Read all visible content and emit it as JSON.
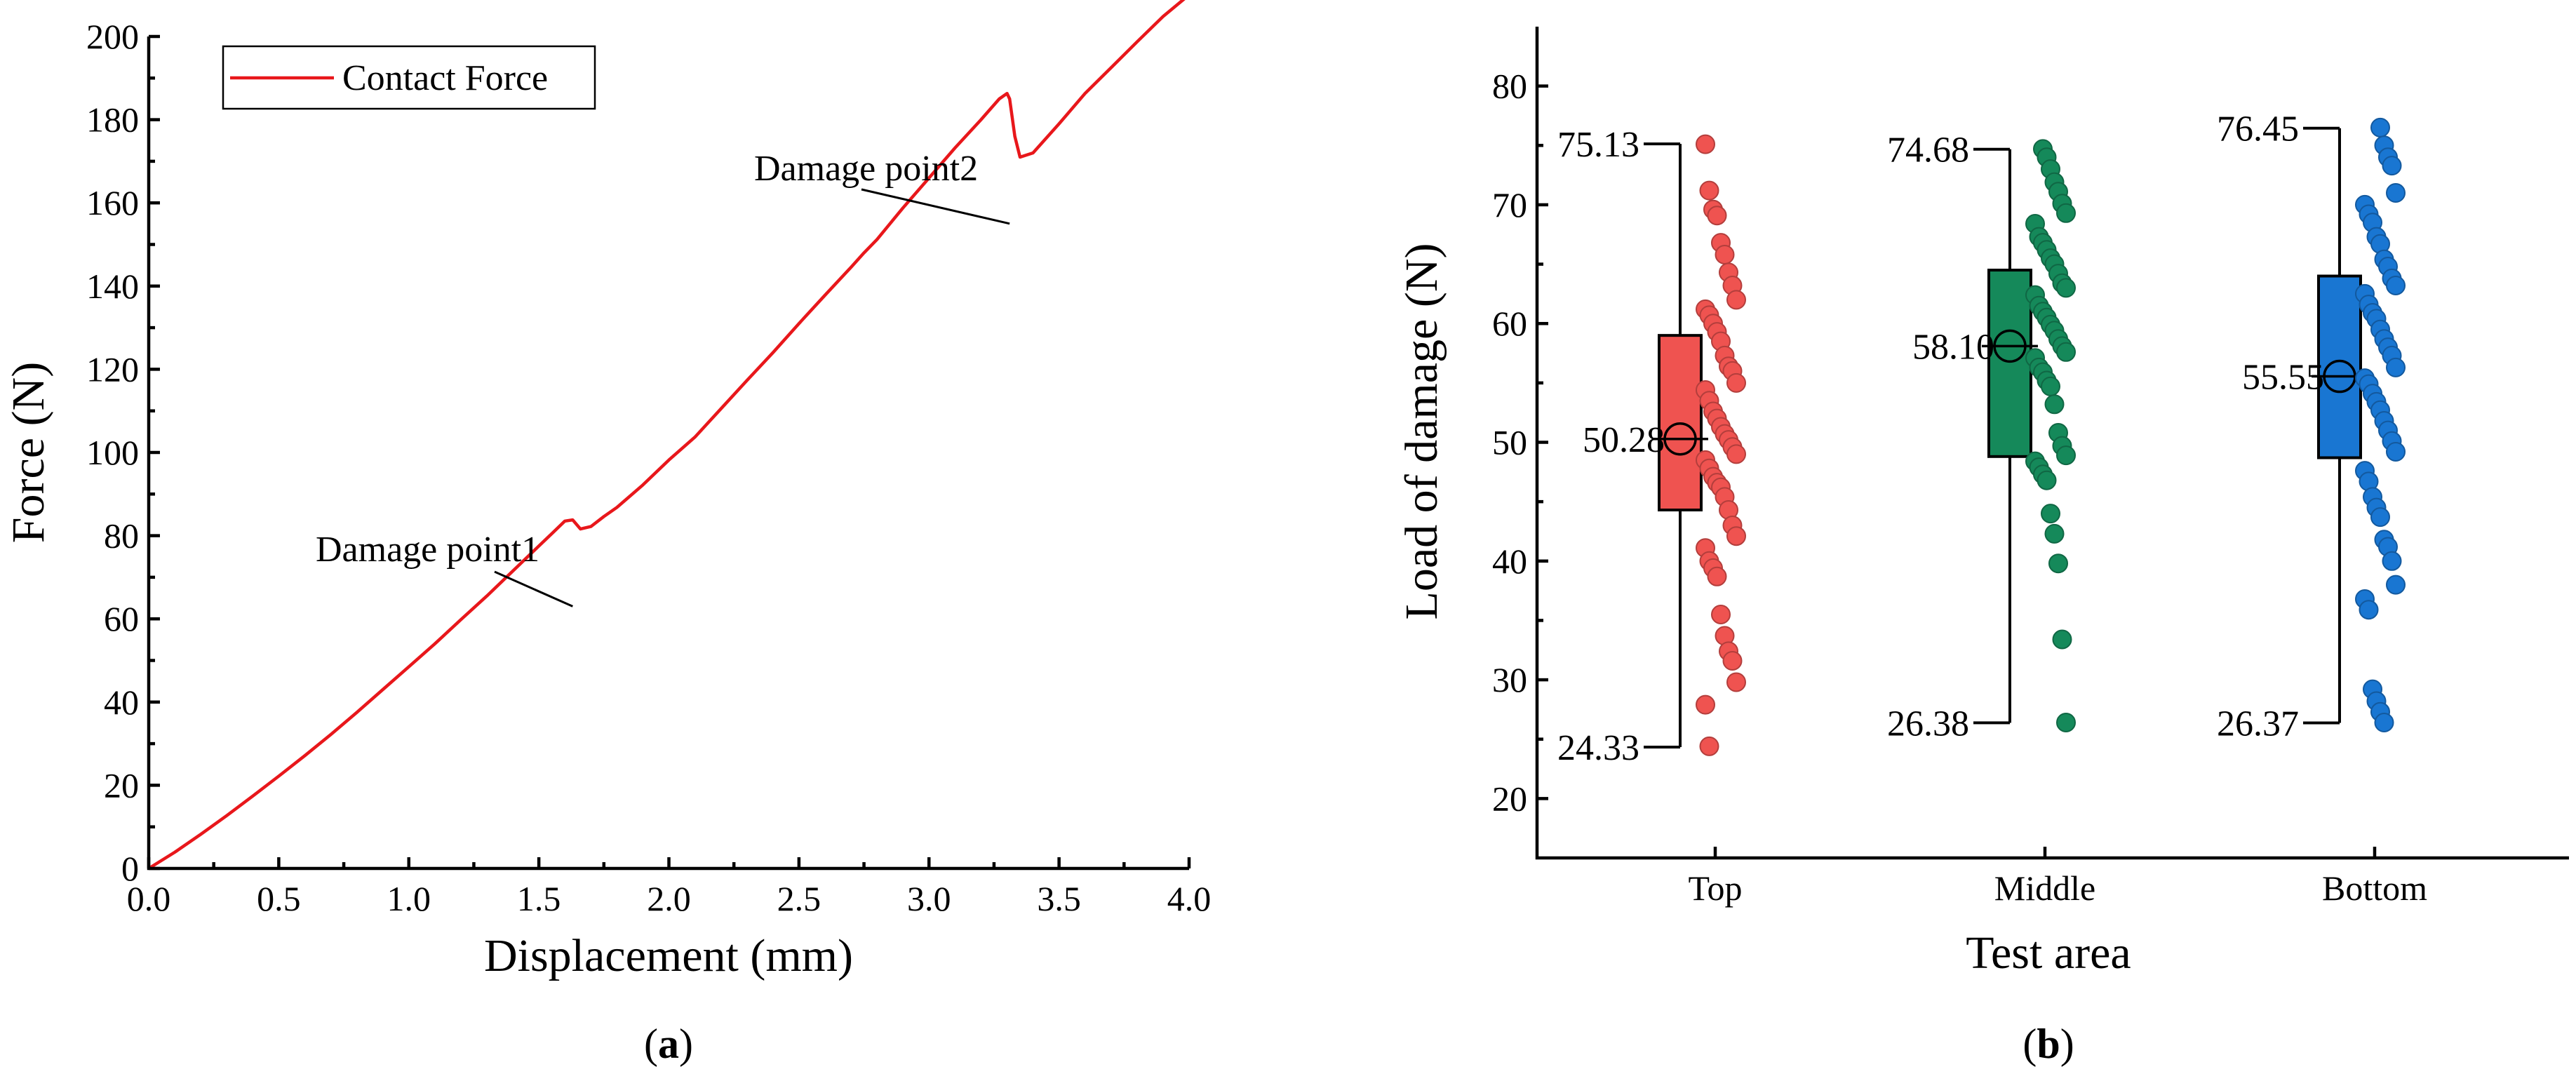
{
  "chart_data": [
    {
      "type": "line",
      "panel_label": "a",
      "title": "",
      "xlabel": "Displacement (mm)",
      "ylabel": "Force (N)",
      "xlim": [
        0,
        4.0
      ],
      "ylim": [
        0,
        200
      ],
      "xticks": [
        "0.0",
        "0.5",
        "1.0",
        "1.5",
        "2.0",
        "2.5",
        "3.0",
        "3.5",
        "4.0"
      ],
      "yticks": [
        "0",
        "20",
        "40",
        "60",
        "80",
        "100",
        "120",
        "140",
        "160",
        "180",
        "200"
      ],
      "legend": {
        "label": "Contact Force",
        "placement": "top-left"
      },
      "series": [
        {
          "name": "Contact Force",
          "color": "#e8171b",
          "x": [
            0.0,
            0.1,
            0.2,
            0.3,
            0.4,
            0.5,
            0.6,
            0.7,
            0.8,
            0.9,
            1.0,
            1.1,
            1.2,
            1.3,
            1.4,
            1.5,
            1.55,
            1.6,
            1.63,
            1.66,
            1.7,
            1.75,
            1.8,
            1.9,
            2.0,
            2.1,
            2.2,
            2.3,
            2.4,
            2.5,
            2.6,
            2.7,
            2.75,
            2.8,
            2.9,
            3.0,
            3.1,
            3.2,
            3.27,
            3.3,
            3.31,
            3.33,
            3.35,
            3.4,
            3.5,
            3.6,
            3.7,
            3.8,
            3.9,
            4.0
          ],
          "y": [
            0,
            3.9,
            8.2,
            12.7,
            17.4,
            22.2,
            27.1,
            32.2,
            37.5,
            43.0,
            48.5,
            54.0,
            59.8,
            65.5,
            71.5,
            77.5,
            80.5,
            83.5,
            83.8,
            81.6,
            82.2,
            84.6,
            86.8,
            92.2,
            98.2,
            103.7,
            110.5,
            117.3,
            124.0,
            131.0,
            137.8,
            144.5,
            148.0,
            151.2,
            158.8,
            166.0,
            173.2,
            180.0,
            185.0,
            186.3,
            185.0,
            176.0,
            171.0,
            172.0,
            179.0,
            186.3,
            192.5,
            198.7,
            204.8,
            210.0
          ]
        }
      ],
      "annotations": [
        {
          "text": "Damage point1",
          "x": 1.63,
          "y": 63
        },
        {
          "text": "Damage point2",
          "x": 3.31,
          "y": 155
        }
      ]
    },
    {
      "type": "box",
      "panel_label": "b",
      "title": "",
      "xlabel": "Test area",
      "ylabel": "Load of damage (N)",
      "ylim": [
        15,
        85
      ],
      "yticks": [
        "20",
        "30",
        "40",
        "50",
        "60",
        "70",
        "80"
      ],
      "categories": [
        "Top",
        "Middle",
        "Bottom"
      ],
      "series": [
        {
          "name": "Top",
          "color": "#ef5350",
          "min": 24.33,
          "q1": 44.3,
          "mean": 50.28,
          "q3": 59.0,
          "max": 75.13,
          "points": [
            75.1,
            71.2,
            69.6,
            69.1,
            66.8,
            65.8,
            64.3,
            63.2,
            62.0,
            61.2,
            60.7,
            60.0,
            59.3,
            58.5,
            57.3,
            56.4,
            56.0,
            55.0,
            54.4,
            53.5,
            52.6,
            52.0,
            51.3,
            50.7,
            50.2,
            49.6,
            49.0,
            48.5,
            47.8,
            47.1,
            46.6,
            46.2,
            45.4,
            44.3,
            43.0,
            42.1,
            41.1,
            40.0,
            39.4,
            38.7,
            35.5,
            33.7,
            32.4,
            31.6,
            29.8,
            27.9,
            24.4
          ]
        },
        {
          "name": "Middle",
          "color": "#15895a",
          "min": 26.38,
          "q1": 48.8,
          "mean": 58.1,
          "q3": 64.5,
          "max": 74.68,
          "points": [
            74.7,
            74.0,
            73.0,
            71.9,
            71.1,
            70.1,
            69.3,
            68.4,
            67.3,
            66.8,
            66.2,
            65.5,
            65.0,
            64.2,
            63.4,
            63.0,
            62.4,
            61.5,
            61.0,
            60.5,
            59.9,
            59.4,
            58.7,
            58.1,
            57.6,
            57.1,
            56.3,
            55.9,
            55.2,
            54.7,
            53.2,
            50.8,
            49.7,
            48.9,
            48.4,
            47.9,
            47.3,
            46.8,
            44.0,
            42.3,
            39.8,
            33.4,
            26.4
          ]
        },
        {
          "name": "Bottom",
          "color": "#1976d2",
          "min": 26.37,
          "q1": 48.7,
          "mean": 55.55,
          "q3": 64.0,
          "max": 76.45,
          "points": [
            76.5,
            75.0,
            74.0,
            73.3,
            71.0,
            70.0,
            69.2,
            68.5,
            67.3,
            66.7,
            65.4,
            64.8,
            63.8,
            63.2,
            62.5,
            61.6,
            60.9,
            60.4,
            59.5,
            58.7,
            58.0,
            57.3,
            56.3,
            55.4,
            54.9,
            54.1,
            53.4,
            52.7,
            51.8,
            51.0,
            50.1,
            49.2,
            47.6,
            46.7,
            45.4,
            44.5,
            43.7,
            41.8,
            41.2,
            40.0,
            38.0,
            36.8,
            35.9,
            29.2,
            28.2,
            27.3,
            26.4
          ]
        }
      ]
    }
  ]
}
